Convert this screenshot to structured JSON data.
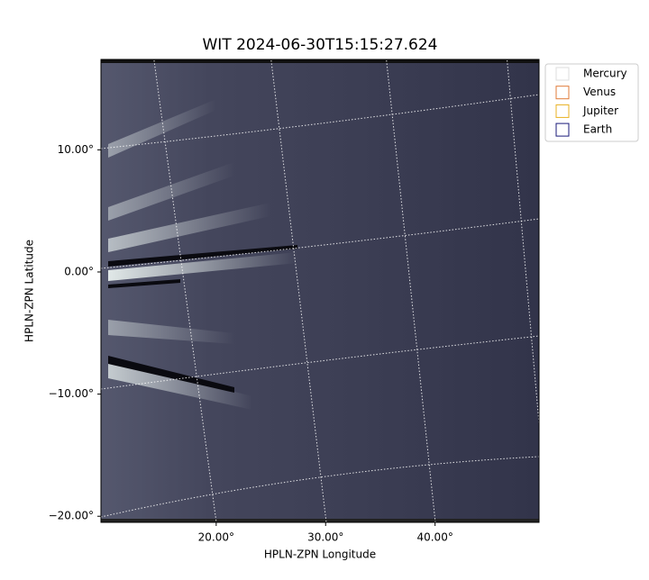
{
  "chart_data": {
    "type": "image",
    "title": "WIT 2024-06-30T15:15:27.624",
    "xlabel": "HPLN-ZPN Longitude",
    "ylabel": "HPLN-ZPN Latitude",
    "xlim": [
      9.47,
      49.5
    ],
    "ylim": [
      -20.5,
      17.4
    ],
    "xticks": [
      {
        "value": 20,
        "label": "20.00°"
      },
      {
        "value": 30,
        "label": "30.00°"
      },
      {
        "value": 40,
        "label": "40.00°"
      }
    ],
    "yticks": [
      {
        "value": 10,
        "label": "10.00°"
      },
      {
        "value": 0,
        "label": "0.00°"
      },
      {
        "value": -10,
        "label": "−10.00°"
      },
      {
        "value": -20,
        "label": "−20.00°"
      }
    ],
    "legend": [
      {
        "name": "Mercury",
        "color": "#dddddd"
      },
      {
        "name": "Venus",
        "color": "#e07b39"
      },
      {
        "name": "Jupiter",
        "color": "#e8b020"
      },
      {
        "name": "Earth",
        "color": "#1a1a7a"
      }
    ],
    "legend_position": "upper right outside"
  }
}
